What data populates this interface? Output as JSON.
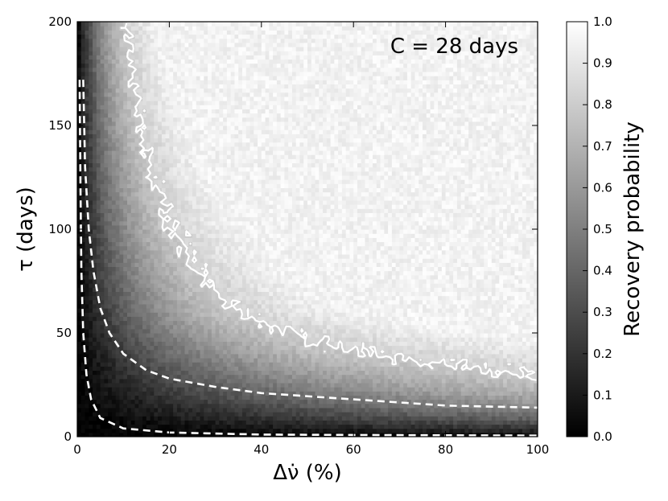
{
  "chart_data": {
    "type": "heatmap",
    "annotation": "C = 28 days",
    "xlabel": "Δν̇ (%)",
    "ylabel": "τ (days)",
    "xlim": [
      0,
      100
    ],
    "ylim": [
      0,
      200
    ],
    "x_ticks": [
      "0",
      "20",
      "40",
      "60",
      "80",
      "100"
    ],
    "y_ticks": [
      "0",
      "50",
      "100",
      "150",
      "200"
    ],
    "colorbar": {
      "label": "Recovery probability",
      "range": [
        0.0,
        1.0
      ],
      "ticks": [
        "0.0",
        "0.1",
        "0.2",
        "0.3",
        "0.4",
        "0.5",
        "0.6",
        "0.7",
        "0.8",
        "0.9",
        "1.0"
      ],
      "colormap": "gray"
    },
    "contour_level": 0.8,
    "contour_color": "#ffffff",
    "dashed_curves": [
      {
        "points": [
          [
            0.5,
            172
          ],
          [
            0.7,
            120
          ],
          [
            0.9,
            80
          ],
          [
            1.3,
            50
          ],
          [
            2,
            30
          ],
          [
            3,
            18
          ],
          [
            5,
            9
          ],
          [
            10,
            4
          ],
          [
            20,
            2
          ],
          [
            40,
            1
          ],
          [
            60,
            0.8
          ],
          [
            100,
            0.5
          ]
        ]
      },
      {
        "points": [
          [
            1.3,
            172
          ],
          [
            1.7,
            130
          ],
          [
            2.5,
            100
          ],
          [
            3.5,
            80
          ],
          [
            5,
            62
          ],
          [
            7,
            50
          ],
          [
            10,
            40
          ],
          [
            15,
            32
          ],
          [
            20,
            28
          ],
          [
            30,
            24
          ],
          [
            40,
            21
          ],
          [
            60,
            18
          ],
          [
            80,
            15
          ],
          [
            100,
            14
          ]
        ]
      }
    ]
  }
}
